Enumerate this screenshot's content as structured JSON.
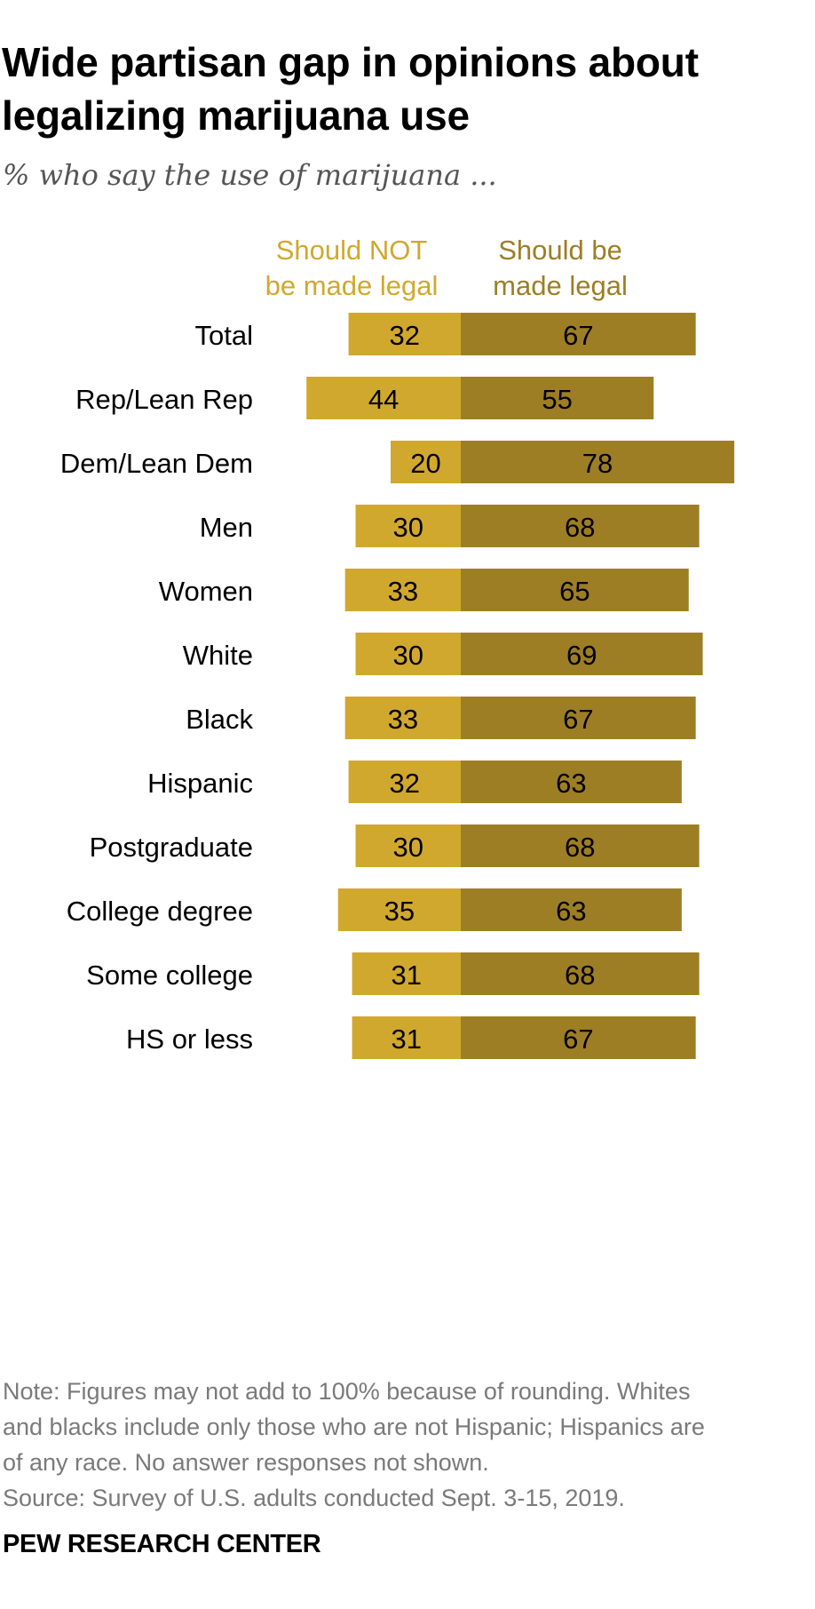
{
  "header": {
    "title_line1": "Wide partisan gap in opinions about",
    "title_line2": "legalizing marijuana use",
    "subtitle": "% who say the use of marijuana ..."
  },
  "legend": {
    "not_legal_line1": "Should NOT",
    "not_legal_line2": "be made legal",
    "legal_line1": "Should be",
    "legal_line2": "made legal"
  },
  "colors": {
    "not_legal": "#d1a82e",
    "legal": "#9d7e25",
    "label_text": "#000000",
    "note_text": "#7a7a7a"
  },
  "chart_data": {
    "type": "bar",
    "orientation": "horizontal-diverging",
    "title": "Wide partisan gap in opinions about legalizing marijuana use",
    "subtitle": "% who say the use of marijuana ...",
    "categories": [
      "Total",
      "Rep/Lean Rep",
      "Dem/Lean Dem",
      "Men",
      "Women",
      "White",
      "Black",
      "Hispanic",
      "Postgraduate",
      "College degree",
      "Some college",
      "HS or less"
    ],
    "groups": [
      [
        "Total"
      ],
      [
        "Rep/Lean Rep",
        "Dem/Lean Dem"
      ],
      [
        "Men",
        "Women"
      ],
      [
        "White",
        "Black",
        "Hispanic"
      ],
      [
        "Postgraduate",
        "College degree",
        "Some college",
        "HS or less"
      ]
    ],
    "series": [
      {
        "name": "Should NOT be made legal",
        "color": "#d1a82e",
        "direction": "left",
        "values": [
          32,
          44,
          20,
          30,
          33,
          30,
          33,
          32,
          30,
          35,
          31,
          31
        ]
      },
      {
        "name": "Should be made legal",
        "color": "#9d7e25",
        "direction": "right",
        "values": [
          67,
          55,
          78,
          68,
          65,
          69,
          67,
          63,
          68,
          63,
          68,
          67
        ]
      }
    ],
    "xlim": [
      0,
      100
    ],
    "grid": false,
    "legend_position": "top"
  },
  "footer": {
    "note_line1": "Note: Figures may not add to 100% because of rounding. Whites",
    "note_line2": "and blacks include only those who are not Hispanic; Hispanics are",
    "note_line3": "of any race. No answer responses not shown.",
    "source": "Source: Survey of U.S. adults conducted Sept. 3-15, 2019.",
    "brand": "PEW RESEARCH CENTER"
  }
}
